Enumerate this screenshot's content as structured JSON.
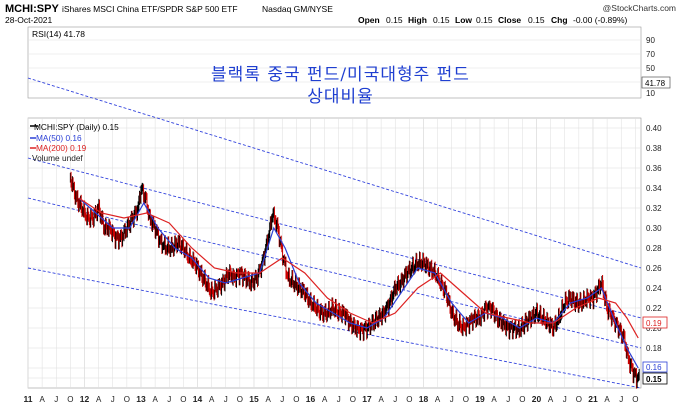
{
  "header": {
    "symbol": "MCHI:SPY",
    "description": "iShares MSCI China ETF/SPDR S&P 500 ETF",
    "exchange": "Nasdaq GM/NYSE",
    "date": "28-Oct-2021",
    "watermark": "@StockCharts.com",
    "ohlc": {
      "open_label": "Open",
      "open": "0.15",
      "high_label": "High",
      "high": "0.15",
      "low_label": "Low",
      "low": "0.15",
      "close_label": "Close",
      "close": "0.15",
      "chg_label": "Chg",
      "chg": "-0.00 (-0.89%)"
    }
  },
  "overlay_title": {
    "line1": "블랙록 중국 펀드/미국대형주 펀드",
    "line2": "상대비율"
  },
  "rsi_panel": {
    "label": "RSI(14) 41.78",
    "current_badge": "41.78",
    "ticks": [
      "90",
      "70",
      "50",
      "30",
      "10"
    ]
  },
  "legend": {
    "main": "MCHI:SPY (Daily) 0.15",
    "ma50": "MA(50) 0.16",
    "ma200": "MA(200) 0.19",
    "volume": "Volume undef"
  },
  "badges": {
    "ma200": "0.19",
    "ma50": "0.16",
    "price": "0.15"
  },
  "colors": {
    "price": "#000000",
    "up_bar": "#000000",
    "down_bar": "#cc0000",
    "ma50": "#2a3fd6",
    "ma200": "#dd2222",
    "channel": "#3344dd",
    "overlay_text": "#1f3fd1",
    "grid": "#dddddd"
  },
  "chart_data": {
    "type": "line",
    "title": "MCHI:SPY (Daily)",
    "x_axis_labels": [
      "11",
      "A",
      "J",
      "O",
      "12",
      "A",
      "J",
      "O",
      "13",
      "A",
      "J",
      "O",
      "14",
      "A",
      "J",
      "O",
      "15",
      "A",
      "J",
      "O",
      "16",
      "A",
      "J",
      "O",
      "17",
      "A",
      "J",
      "O",
      "18",
      "A",
      "J",
      "O",
      "19",
      "A",
      "J",
      "O",
      "20",
      "A",
      "J",
      "O",
      "21",
      "A",
      "J",
      "O"
    ],
    "y_ticks": [
      0.15,
      0.16,
      0.18,
      0.2,
      0.22,
      0.24,
      0.26,
      0.28,
      0.3,
      0.32,
      0.34,
      0.36,
      0.38,
      0.4
    ],
    "ylim": [
      0.14,
      0.41
    ],
    "x_range": [
      2011.0,
      2021.85
    ],
    "series": [
      {
        "name": "MCHI:SPY",
        "x": [
          2011.75,
          2011.85,
          2011.95,
          2012.05,
          2012.15,
          2012.25,
          2012.35,
          2012.45,
          2012.55,
          2012.65,
          2012.75,
          2012.85,
          2012.95,
          2013.0,
          2013.08,
          2013.15,
          2013.25,
          2013.35,
          2013.45,
          2013.55,
          2013.65,
          2013.75,
          2013.85,
          2013.95,
          2014.05,
          2014.15,
          2014.25,
          2014.35,
          2014.45,
          2014.55,
          2014.65,
          2014.75,
          2014.85,
          2014.95,
          2015.05,
          2015.15,
          2015.25,
          2015.33,
          2015.42,
          2015.5,
          2015.6,
          2015.7,
          2015.8,
          2015.9,
          2016.0,
          2016.1,
          2016.2,
          2016.3,
          2016.4,
          2016.5,
          2016.6,
          2016.7,
          2016.8,
          2016.9,
          2017.0,
          2017.1,
          2017.2,
          2017.3,
          2017.4,
          2017.5,
          2017.6,
          2017.7,
          2017.8,
          2017.9,
          2018.0,
          2018.1,
          2018.2,
          2018.3,
          2018.4,
          2018.5,
          2018.6,
          2018.7,
          2018.8,
          2018.9,
          2019.0,
          2019.1,
          2019.2,
          2019.3,
          2019.4,
          2019.5,
          2019.6,
          2019.7,
          2019.8,
          2019.9,
          2020.0,
          2020.1,
          2020.2,
          2020.3,
          2020.4,
          2020.5,
          2020.6,
          2020.7,
          2020.8,
          2020.9,
          2021.0,
          2021.1,
          2021.15,
          2021.25,
          2021.35,
          2021.45,
          2021.55,
          2021.6,
          2021.65,
          2021.72,
          2021.78,
          2021.82
        ],
        "y": [
          0.35,
          0.33,
          0.32,
          0.31,
          0.31,
          0.32,
          0.3,
          0.3,
          0.29,
          0.29,
          0.3,
          0.31,
          0.32,
          0.34,
          0.33,
          0.31,
          0.3,
          0.285,
          0.28,
          0.28,
          0.285,
          0.28,
          0.27,
          0.265,
          0.255,
          0.245,
          0.235,
          0.24,
          0.245,
          0.255,
          0.25,
          0.255,
          0.25,
          0.245,
          0.25,
          0.265,
          0.29,
          0.315,
          0.3,
          0.275,
          0.25,
          0.245,
          0.24,
          0.235,
          0.225,
          0.22,
          0.215,
          0.215,
          0.22,
          0.215,
          0.215,
          0.205,
          0.2,
          0.198,
          0.2,
          0.205,
          0.21,
          0.215,
          0.225,
          0.24,
          0.245,
          0.255,
          0.26,
          0.265,
          0.265,
          0.26,
          0.255,
          0.245,
          0.235,
          0.215,
          0.205,
          0.2,
          0.205,
          0.21,
          0.21,
          0.22,
          0.22,
          0.21,
          0.205,
          0.2,
          0.2,
          0.198,
          0.205,
          0.21,
          0.215,
          0.21,
          0.205,
          0.2,
          0.21,
          0.225,
          0.23,
          0.225,
          0.225,
          0.23,
          0.23,
          0.24,
          0.245,
          0.22,
          0.21,
          0.2,
          0.19,
          0.175,
          0.165,
          0.155,
          0.15,
          0.15
        ]
      },
      {
        "name": "MA(50)",
        "x": [
          2011.9,
          2012.2,
          2012.5,
          2012.8,
          2013.05,
          2013.3,
          2013.6,
          2013.9,
          2014.2,
          2014.5,
          2014.8,
          2015.1,
          2015.35,
          2015.55,
          2015.8,
          2016.1,
          2016.4,
          2016.7,
          2017.0,
          2017.3,
          2017.6,
          2017.9,
          2018.2,
          2018.5,
          2018.8,
          2019.1,
          2019.4,
          2019.7,
          2020.0,
          2020.3,
          2020.6,
          2020.9,
          2021.15,
          2021.4,
          2021.6,
          2021.8
        ],
        "y": [
          0.33,
          0.315,
          0.3,
          0.3,
          0.325,
          0.3,
          0.28,
          0.27,
          0.25,
          0.245,
          0.25,
          0.255,
          0.3,
          0.28,
          0.245,
          0.225,
          0.215,
          0.205,
          0.2,
          0.21,
          0.235,
          0.26,
          0.255,
          0.225,
          0.205,
          0.215,
          0.21,
          0.2,
          0.21,
          0.205,
          0.225,
          0.23,
          0.24,
          0.205,
          0.18,
          0.16
        ]
      },
      {
        "name": "MA(200)",
        "x": [
          2011.9,
          2012.3,
          2012.7,
          2013.1,
          2013.5,
          2013.9,
          2014.3,
          2014.7,
          2015.1,
          2015.5,
          2015.9,
          2016.3,
          2016.7,
          2017.1,
          2017.5,
          2017.9,
          2018.3,
          2018.7,
          2019.1,
          2019.5,
          2019.9,
          2020.3,
          2020.7,
          2021.1,
          2021.4,
          2021.6,
          2021.8
        ],
        "y": [
          0.33,
          0.315,
          0.31,
          0.315,
          0.305,
          0.28,
          0.26,
          0.255,
          0.255,
          0.27,
          0.255,
          0.23,
          0.215,
          0.205,
          0.215,
          0.24,
          0.255,
          0.235,
          0.215,
          0.21,
          0.205,
          0.205,
          0.22,
          0.23,
          0.225,
          0.21,
          0.19
        ]
      }
    ],
    "channels": [
      {
        "x": [
          2011.0,
          2021.85
        ],
        "y": [
          0.45,
          0.26
        ]
      },
      {
        "x": [
          2011.0,
          2021.85
        ],
        "y": [
          0.37,
          0.21
        ]
      },
      {
        "x": [
          2011.0,
          2021.85
        ],
        "y": [
          0.33,
          0.18
        ]
      },
      {
        "x": [
          2011.0,
          2021.85
        ],
        "y": [
          0.26,
          0.14
        ]
      }
    ],
    "grid": true,
    "legend_position": "top-left"
  }
}
